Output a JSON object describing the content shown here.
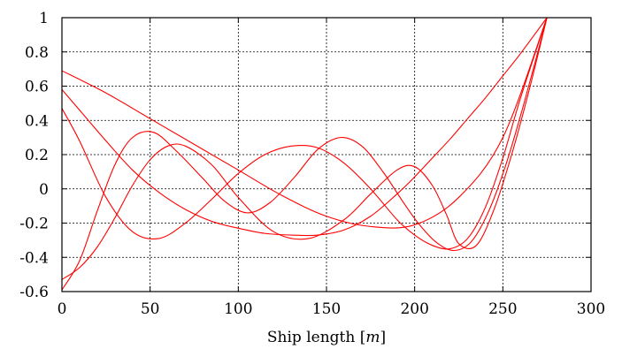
{
  "chart_data": {
    "type": "line",
    "title": "",
    "xlabel_prefix": "Ship length [",
    "xlabel_unit": "m",
    "xlabel_suffix": "]",
    "ylabel": "",
    "xlim": [
      0,
      300
    ],
    "ylim": [
      -0.6,
      1
    ],
    "xticks": [
      0,
      50,
      100,
      150,
      200,
      250,
      300
    ],
    "yticks": [
      -0.6,
      -0.4,
      -0.2,
      0,
      0.2,
      0.4,
      0.6,
      0.8,
      1
    ],
    "xtick_labels": [
      "0",
      "50",
      "100",
      "150",
      "200",
      "250",
      "300"
    ],
    "ytick_labels": [
      "-0.6",
      "-0.4",
      "-0.2",
      "0",
      "0.2",
      "0.4",
      "0.6",
      "0.8",
      "1"
    ],
    "grid": true,
    "line_color": "#ff0000",
    "series": [
      {
        "x": [
          0,
          25,
          50,
          75,
          100,
          125,
          150,
          175,
          200,
          225,
          250,
          275
        ],
        "y": [
          0.69,
          0.56,
          0.41,
          0.26,
          0.11,
          -0.04,
          -0.16,
          -0.22,
          -0.21,
          -0.05,
          0.3,
          1.0
        ]
      },
      {
        "x": [
          0,
          10,
          25,
          40,
          55,
          70,
          85,
          100,
          115,
          130,
          145,
          160,
          175,
          190,
          200,
          210,
          220,
          230,
          240,
          250,
          260,
          275
        ],
        "y": [
          0.58,
          0.46,
          0.28,
          0.11,
          -0.02,
          -0.12,
          -0.19,
          -0.23,
          -0.26,
          -0.27,
          -0.27,
          -0.24,
          -0.16,
          -0.03,
          0.07,
          0.18,
          0.29,
          0.41,
          0.53,
          0.66,
          0.79,
          1.0
        ]
      },
      {
        "x": [
          0,
          10,
          25,
          40,
          55,
          70,
          85,
          100,
          115,
          130,
          145,
          160,
          175,
          190,
          200,
          210,
          220,
          230,
          240,
          250,
          260,
          275
        ],
        "y": [
          0.47,
          0.28,
          -0.05,
          -0.25,
          -0.29,
          -0.2,
          -0.06,
          0.09,
          0.2,
          0.25,
          0.24,
          0.15,
          0.0,
          -0.18,
          -0.27,
          -0.33,
          -0.35,
          -0.29,
          -0.11,
          0.18,
          0.53,
          1.0
        ]
      },
      {
        "x": [
          0,
          10,
          20,
          30,
          40,
          50,
          60,
          70,
          85,
          100,
          120,
          140,
          160,
          175,
          190,
          200,
          210,
          218,
          225,
          235,
          245,
          255,
          265,
          275
        ],
        "y": [
          -0.53,
          -0.46,
          -0.34,
          -0.17,
          0.02,
          0.17,
          0.25,
          0.25,
          0.14,
          -0.05,
          -0.25,
          -0.29,
          -0.18,
          -0.03,
          0.11,
          0.13,
          0.02,
          -0.15,
          -0.32,
          -0.33,
          -0.12,
          0.2,
          0.58,
          1.0
        ]
      },
      {
        "x": [
          0,
          10,
          20,
          30,
          40,
          52,
          65,
          80,
          92,
          105,
          118,
          132,
          145,
          158,
          170,
          182,
          193,
          202,
          212,
          222,
          232,
          242,
          252,
          262,
          275
        ],
        "y": [
          -0.59,
          -0.42,
          -0.13,
          0.14,
          0.3,
          0.33,
          0.22,
          0.06,
          -0.07,
          -0.14,
          -0.08,
          0.07,
          0.23,
          0.3,
          0.25,
          0.1,
          -0.07,
          -0.2,
          -0.31,
          -0.36,
          -0.31,
          -0.13,
          0.15,
          0.5,
          1.0
        ]
      }
    ]
  }
}
